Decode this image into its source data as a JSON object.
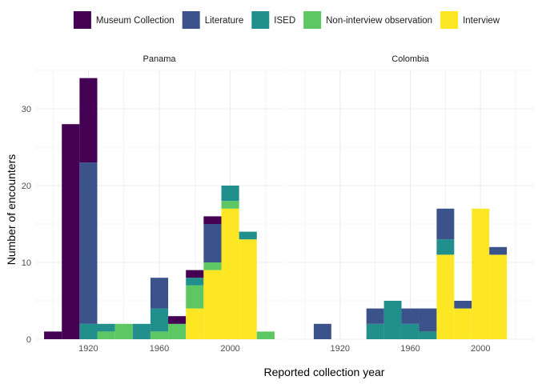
{
  "chart_data": {
    "type": "bar",
    "stacked": true,
    "xlabel": "Reported collection year",
    "ylabel": "Number of encounters",
    "xlim": [
      1990,
      2030
    ],
    "x_extent": [
      1890,
      2030
    ],
    "ylim": [
      0,
      35
    ],
    "xticks": [
      1920,
      1960,
      2000
    ],
    "yticks": [
      0,
      10,
      20,
      30
    ],
    "bin_width": 10,
    "grid": true,
    "legend_position": "top",
    "series": [
      {
        "name": "Museum Collection",
        "color": "#440154"
      },
      {
        "name": "Literature",
        "color": "#3B528B"
      },
      {
        "name": "ISED",
        "color": "#21908C"
      },
      {
        "name": "Non-interview observation",
        "color": "#5DC863"
      },
      {
        "name": "Interview",
        "color": "#FDE725"
      }
    ],
    "panels": [
      {
        "title": "Panama",
        "bins": [
          {
            "x0": 1895,
            "x1": 1905,
            "values": {
              "Museum Collection": 1
            }
          },
          {
            "x0": 1905,
            "x1": 1915,
            "values": {
              "Museum Collection": 28
            }
          },
          {
            "x0": 1915,
            "x1": 1925,
            "values": {
              "ISED": 2,
              "Literature": 21,
              "Museum Collection": 11
            }
          },
          {
            "x0": 1925,
            "x1": 1935,
            "values": {
              "Non-interview observation": 1,
              "ISED": 1
            }
          },
          {
            "x0": 1935,
            "x1": 1945,
            "values": {
              "Non-interview observation": 2
            }
          },
          {
            "x0": 1945,
            "x1": 1955,
            "values": {
              "ISED": 2
            }
          },
          {
            "x0": 1955,
            "x1": 1965,
            "values": {
              "Non-interview observation": 1,
              "ISED": 3,
              "Literature": 4
            }
          },
          {
            "x0": 1965,
            "x1": 1975,
            "values": {
              "Non-interview observation": 2,
              "Museum Collection": 1
            }
          },
          {
            "x0": 1975,
            "x1": 1985,
            "values": {
              "Interview": 4,
              "Non-interview observation": 3,
              "ISED": 1,
              "Museum Collection": 1
            }
          },
          {
            "x0": 1985,
            "x1": 1995,
            "values": {
              "Interview": 9,
              "Non-interview observation": 1,
              "Literature": 5,
              "Museum Collection": 1
            }
          },
          {
            "x0": 1995,
            "x1": 2005,
            "values": {
              "Interview": 17,
              "Non-interview observation": 1,
              "ISED": 2
            }
          },
          {
            "x0": 2005,
            "x1": 2015,
            "values": {
              "Interview": 13,
              "ISED": 1
            }
          },
          {
            "x0": 2015,
            "x1": 2025,
            "values": {
              "Non-interview observation": 1
            }
          }
        ]
      },
      {
        "title": "Colombia",
        "bins": [
          {
            "x0": 1905,
            "x1": 1915,
            "values": {
              "Literature": 2
            }
          },
          {
            "x0": 1935,
            "x1": 1945,
            "values": {
              "ISED": 2,
              "Literature": 2
            }
          },
          {
            "x0": 1945,
            "x1": 1955,
            "values": {
              "ISED": 5
            }
          },
          {
            "x0": 1955,
            "x1": 1965,
            "values": {
              "ISED": 2,
              "Literature": 2
            }
          },
          {
            "x0": 1965,
            "x1": 1975,
            "values": {
              "ISED": 1,
              "Literature": 3
            }
          },
          {
            "x0": 1975,
            "x1": 1985,
            "values": {
              "Interview": 11,
              "ISED": 2,
              "Literature": 4
            }
          },
          {
            "x0": 1985,
            "x1": 1995,
            "values": {
              "Interview": 4,
              "Literature": 1
            }
          },
          {
            "x0": 1995,
            "x1": 2005,
            "values": {
              "Interview": 17
            }
          },
          {
            "x0": 2005,
            "x1": 2015,
            "values": {
              "Interview": 11,
              "Literature": 1
            }
          }
        ]
      }
    ]
  }
}
